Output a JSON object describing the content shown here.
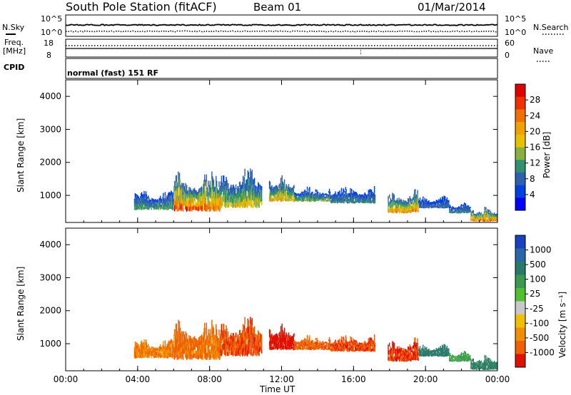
{
  "header": {
    "title": "South Pole Station (fitACF)",
    "beam": "Beam 01",
    "date": "01/Mar/2014"
  },
  "noise_panel": {
    "left_label": "N.Sky",
    "right_label": "N.Search",
    "ticks_left": [
      "10^5",
      "10^0"
    ],
    "ticks_right": [
      "10^5",
      "10^0"
    ]
  },
  "freq_panel": {
    "left_label_1": "Freq.",
    "left_label_2": "[MHz]",
    "ticks_left": [
      "18",
      "8"
    ],
    "ticks_right": [
      "60",
      "0"
    ],
    "right_label": "Nave"
  },
  "cpid": {
    "label": "CPID",
    "program": "normal (fast) 151 RF"
  },
  "power_colorbar": {
    "title": "Power [dB]",
    "ticks": [
      "28",
      "24",
      "20",
      "16",
      "12",
      "8",
      "4"
    ],
    "colors": [
      "#e00000",
      "#f03000",
      "#f07000",
      "#f0a000",
      "#e8c000",
      "#88b040",
      "#309070",
      "#3060b0",
      "#0040e0",
      "#0000ff"
    ]
  },
  "velocity_colorbar": {
    "title": "Velocity [m s⁻¹]",
    "ticks": [
      "1000",
      "500",
      "100",
      "25",
      "-25",
      "-100",
      "-500",
      "-1000"
    ],
    "colors": [
      "#1840c0",
      "#2868a8",
      "#2a7a6a",
      "#3a9a50",
      "#50c030",
      "#c8c8c8",
      "#f0c000",
      "#f09000",
      "#f06000",
      "#e01000"
    ]
  },
  "chart_data": [
    {
      "type": "heatmap",
      "name": "power",
      "xlabel": "",
      "ylabel": "Slant Range [km]",
      "xlim_hours": [
        0,
        24
      ],
      "ylim": [
        180,
        4500
      ],
      "yticks": [
        "1000",
        "2000",
        "3000",
        "4000"
      ],
      "colorbar": "Power [dB]",
      "echo_regions": [
        {
          "t_start": 3.8,
          "t_end": 6.0,
          "r_min": 550,
          "r_max": 1200,
          "peak_db": 14
        },
        {
          "t_start": 6.0,
          "t_end": 8.6,
          "r_min": 500,
          "r_max": 1800,
          "peak_db": 30
        },
        {
          "t_start": 8.6,
          "t_end": 10.9,
          "r_min": 600,
          "r_max": 1900,
          "peak_db": 20
        },
        {
          "t_start": 11.3,
          "t_end": 12.7,
          "r_min": 800,
          "r_max": 1650,
          "peak_db": 22
        },
        {
          "t_start": 12.7,
          "t_end": 14.7,
          "r_min": 800,
          "r_max": 1300,
          "peak_db": 16
        },
        {
          "t_start": 14.7,
          "t_end": 17.2,
          "r_min": 750,
          "r_max": 1300,
          "peak_db": 12
        },
        {
          "t_start": 17.9,
          "t_end": 19.6,
          "r_min": 450,
          "r_max": 1200,
          "peak_db": 26
        },
        {
          "t_start": 19.6,
          "t_end": 21.3,
          "r_min": 600,
          "r_max": 1000,
          "peak_db": 10
        },
        {
          "t_start": 21.3,
          "t_end": 22.5,
          "r_min": 450,
          "r_max": 800,
          "peak_db": 12
        },
        {
          "t_start": 22.5,
          "t_end": 24.0,
          "r_min": 200,
          "r_max": 700,
          "peak_db": 28
        }
      ]
    },
    {
      "type": "heatmap",
      "name": "velocity",
      "xlabel": "Time UT",
      "ylabel": "Slant Range [km]",
      "xlim_hours": [
        0,
        24
      ],
      "ylim": [
        180,
        4500
      ],
      "xticks": [
        "00:00",
        "04:00",
        "08:00",
        "12:00",
        "16:00",
        "20:00",
        "00:00"
      ],
      "yticks": [
        "1000",
        "2000",
        "3000",
        "4000"
      ],
      "colorbar": "Velocity [m s⁻¹]",
      "echo_regions": [
        {
          "t_start": 3.8,
          "t_end": 6.0,
          "r_min": 550,
          "r_max": 1200,
          "velocity": -300
        },
        {
          "t_start": 6.0,
          "t_end": 8.6,
          "r_min": 500,
          "r_max": 1800,
          "velocity": -350
        },
        {
          "t_start": 8.6,
          "t_end": 10.9,
          "r_min": 600,
          "r_max": 1900,
          "velocity": -450
        },
        {
          "t_start": 11.3,
          "t_end": 12.7,
          "r_min": 800,
          "r_max": 1650,
          "velocity": -700
        },
        {
          "t_start": 12.7,
          "t_end": 14.7,
          "r_min": 800,
          "r_max": 1300,
          "velocity": -400
        },
        {
          "t_start": 14.7,
          "t_end": 17.2,
          "r_min": 750,
          "r_max": 1300,
          "velocity": -450
        },
        {
          "t_start": 17.9,
          "t_end": 19.6,
          "r_min": 450,
          "r_max": 1200,
          "velocity": -550
        },
        {
          "t_start": 19.6,
          "t_end": 21.3,
          "r_min": 600,
          "r_max": 1000,
          "velocity": 150
        },
        {
          "t_start": 21.3,
          "t_end": 22.5,
          "r_min": 450,
          "r_max": 800,
          "velocity": 60
        },
        {
          "t_start": 22.5,
          "t_end": 24.0,
          "r_min": 200,
          "r_max": 700,
          "velocity": 120
        }
      ]
    }
  ]
}
